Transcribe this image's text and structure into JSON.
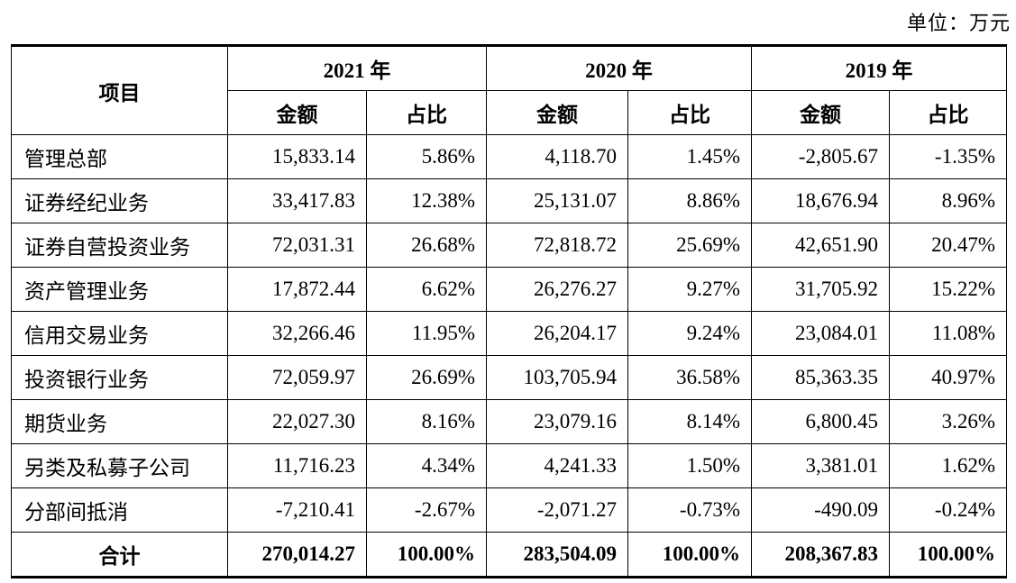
{
  "unit_label": "单位：万元",
  "header": {
    "item": "项目",
    "years": [
      "2021 年",
      "2020 年",
      "2019 年"
    ],
    "amount": "金额",
    "share": "占比"
  },
  "rows": [
    {
      "name": "管理总部",
      "v": [
        "15,833.14",
        "5.86%",
        "4,118.70",
        "1.45%",
        "-2,805.67",
        "-1.35%"
      ]
    },
    {
      "name": "证券经纪业务",
      "v": [
        "33,417.83",
        "12.38%",
        "25,131.07",
        "8.86%",
        "18,676.94",
        "8.96%"
      ]
    },
    {
      "name": "证券自营投资业务",
      "v": [
        "72,031.31",
        "26.68%",
        "72,818.72",
        "25.69%",
        "42,651.90",
        "20.47%"
      ]
    },
    {
      "name": "资产管理业务",
      "v": [
        "17,872.44",
        "6.62%",
        "26,276.27",
        "9.27%",
        "31,705.92",
        "15.22%"
      ]
    },
    {
      "name": "信用交易业务",
      "v": [
        "32,266.46",
        "11.95%",
        "26,204.17",
        "9.24%",
        "23,084.01",
        "11.08%"
      ]
    },
    {
      "name": "投资银行业务",
      "v": [
        "72,059.97",
        "26.69%",
        "103,705.94",
        "36.58%",
        "85,363.35",
        "40.97%"
      ]
    },
    {
      "name": "期货业务",
      "v": [
        "22,027.30",
        "8.16%",
        "23,079.16",
        "8.14%",
        "6,800.45",
        "3.26%"
      ]
    },
    {
      "name": "另类及私募子公司",
      "v": [
        "11,716.23",
        "4.34%",
        "4,241.33",
        "1.50%",
        "3,381.01",
        "1.62%"
      ]
    },
    {
      "name": "分部间抵消",
      "v": [
        "-7,210.41",
        "-2.67%",
        "-2,071.27",
        "-0.73%",
        "-490.09",
        "-0.24%"
      ]
    }
  ],
  "total": {
    "name": "合计",
    "v": [
      "270,014.27",
      "100.00%",
      "283,504.09",
      "100.00%",
      "208,367.83",
      "100.00%"
    ]
  }
}
